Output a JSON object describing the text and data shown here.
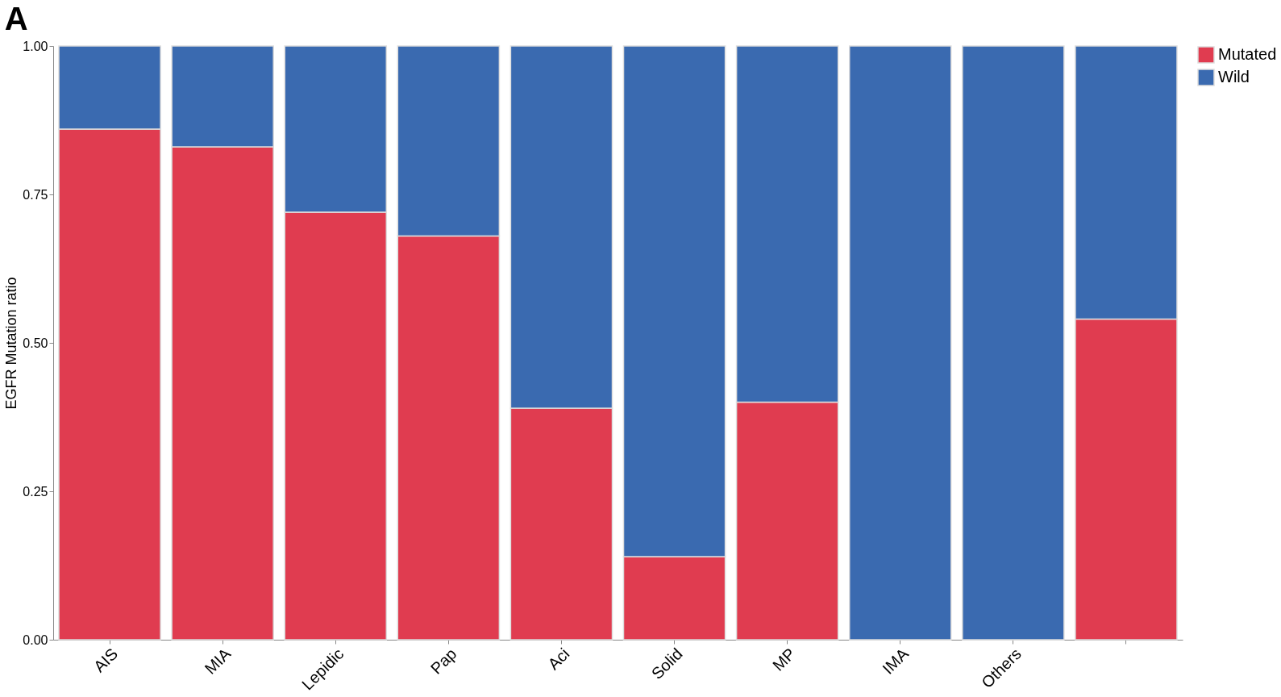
{
  "chart_data": {
    "type": "bar",
    "title": "A",
    "ylabel": "EGFR Mutation ratio",
    "categories": [
      "AIS",
      "MIA",
      "Lepidic",
      "Pap",
      "Aci",
      "Solid",
      "MP",
      "IMA",
      "Others",
      null
    ],
    "series": [
      {
        "name": "Mutated",
        "color": "#e03c50",
        "values": [
          0.86,
          0.83,
          0.72,
          0.68,
          0.39,
          0.14,
          0.4,
          0,
          0,
          0.54
        ]
      },
      {
        "name": "Wild",
        "color": "#3a6ab0",
        "values": [
          0.14,
          0.17,
          0.28,
          0.32,
          0.61,
          0.86,
          0.6,
          1,
          1,
          0.46
        ]
      }
    ],
    "stacked": true,
    "ylim": [
      0,
      1
    ],
    "yticks": [
      {
        "value": 0,
        "label": "0.00"
      },
      {
        "value": 0.25,
        "label": "0.25"
      },
      {
        "value": 0.5,
        "label": "0.50"
      },
      {
        "value": 0.75,
        "label": "0.75"
      },
      {
        "value": 1,
        "label": "1.00"
      }
    ],
    "legend": "right",
    "grid": false
  }
}
